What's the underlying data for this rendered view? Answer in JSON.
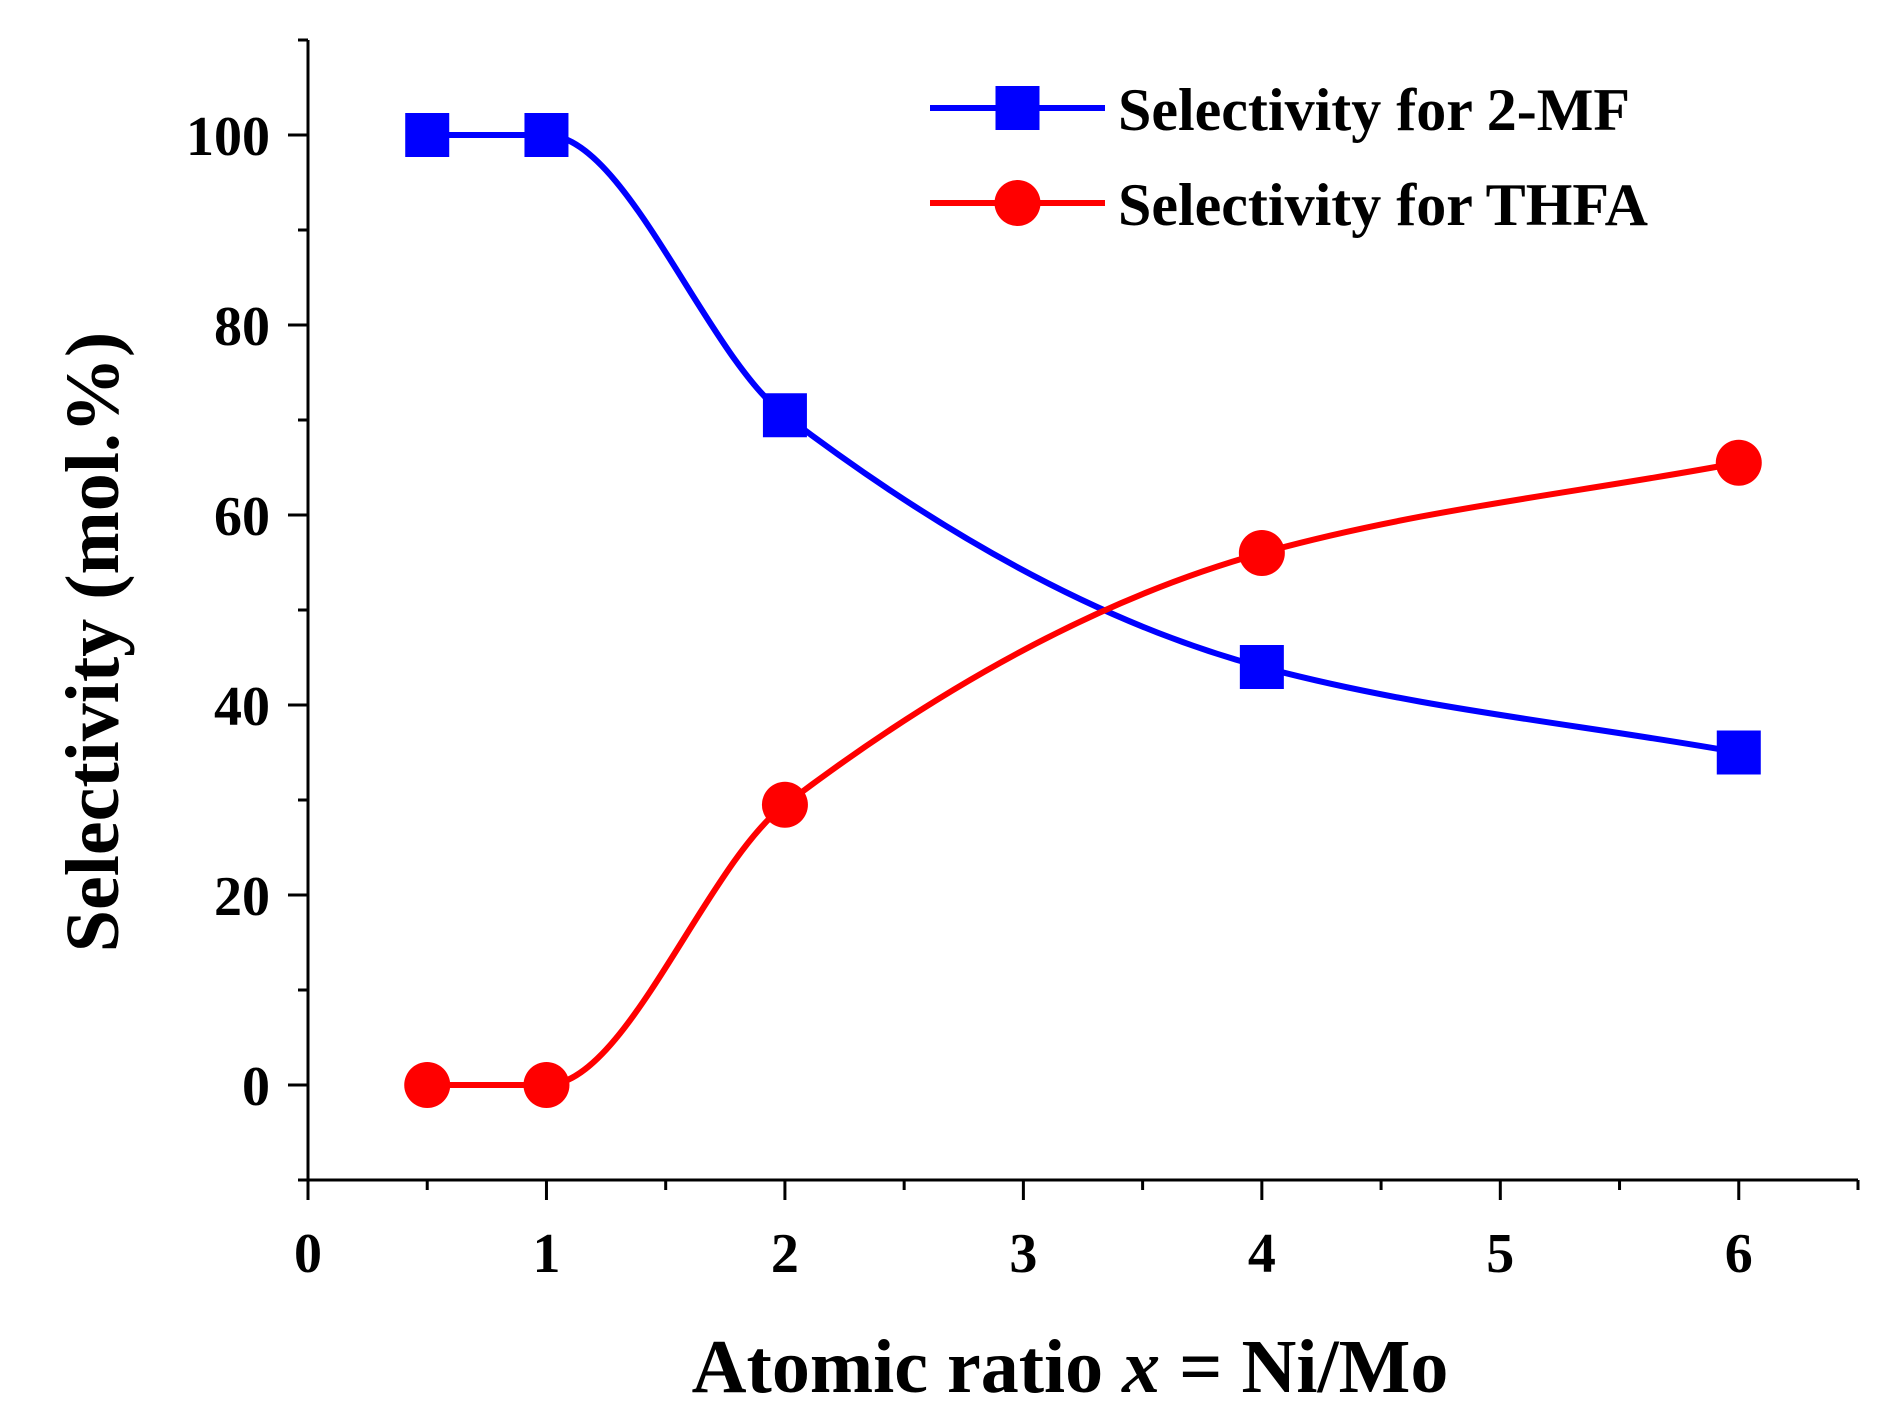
{
  "chart_data": {
    "type": "line",
    "title": "",
    "xlabel_parts": [
      "Atomic ratio ",
      "x",
      " = Ni/Mo"
    ],
    "ylabel": "Selectivity (mol.%)",
    "xlim": [
      0,
      6.5
    ],
    "ylim": [
      -10,
      110
    ],
    "xticks": [
      0,
      1,
      2,
      3,
      4,
      5,
      6
    ],
    "yticks": [
      0,
      20,
      40,
      60,
      80,
      100
    ],
    "x_minor_step": 0.5,
    "y_minor_step": 10,
    "grid": false,
    "legend_position": "top-right",
    "smooth": true,
    "series": [
      {
        "name": "Selectivity for 2-MF",
        "color": "#0000ff",
        "marker": "square",
        "x": [
          0.5,
          1,
          2,
          4,
          6
        ],
        "y": [
          100,
          100,
          70.5,
          44,
          35
        ]
      },
      {
        "name": "Selectivity for THFA",
        "color": "#ff0000",
        "marker": "circle",
        "x": [
          0.5,
          1,
          2,
          4,
          6
        ],
        "y": [
          0,
          0,
          29.5,
          56,
          65.5
        ]
      }
    ]
  }
}
